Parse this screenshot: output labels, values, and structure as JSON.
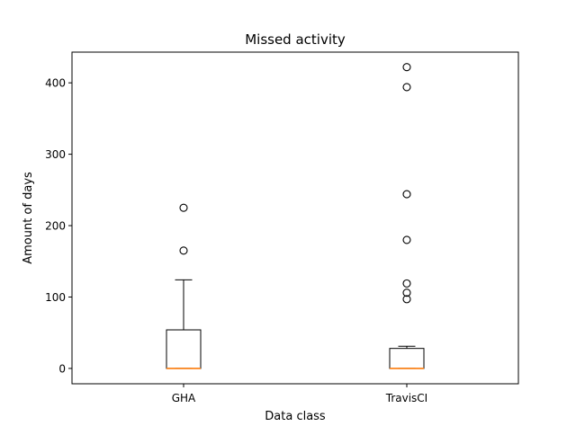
{
  "chart_data": {
    "type": "box",
    "title": "Missed activity",
    "xlabel": "Data class",
    "ylabel": "Amount of days",
    "ylim": [
      -21.5,
      443
    ],
    "yticks": [
      0,
      100,
      200,
      300,
      400
    ],
    "grid": false,
    "categories": [
      "GHA",
      "TravisCI"
    ],
    "boxes": [
      {
        "label": "GHA",
        "whisker_low": 0,
        "q1": 0,
        "median": 0,
        "q3": 54,
        "whisker_high": 124,
        "outliers": [
          165,
          225
        ]
      },
      {
        "label": "TravisCI",
        "whisker_low": 0,
        "q1": 0,
        "median": 0,
        "q3": 28,
        "whisker_high": 31,
        "outliers": [
          97,
          106,
          119,
          180,
          244,
          394,
          422
        ]
      }
    ],
    "colors": {
      "box": "#000000",
      "median": "#ff7f0e",
      "flier": "#000000"
    }
  }
}
